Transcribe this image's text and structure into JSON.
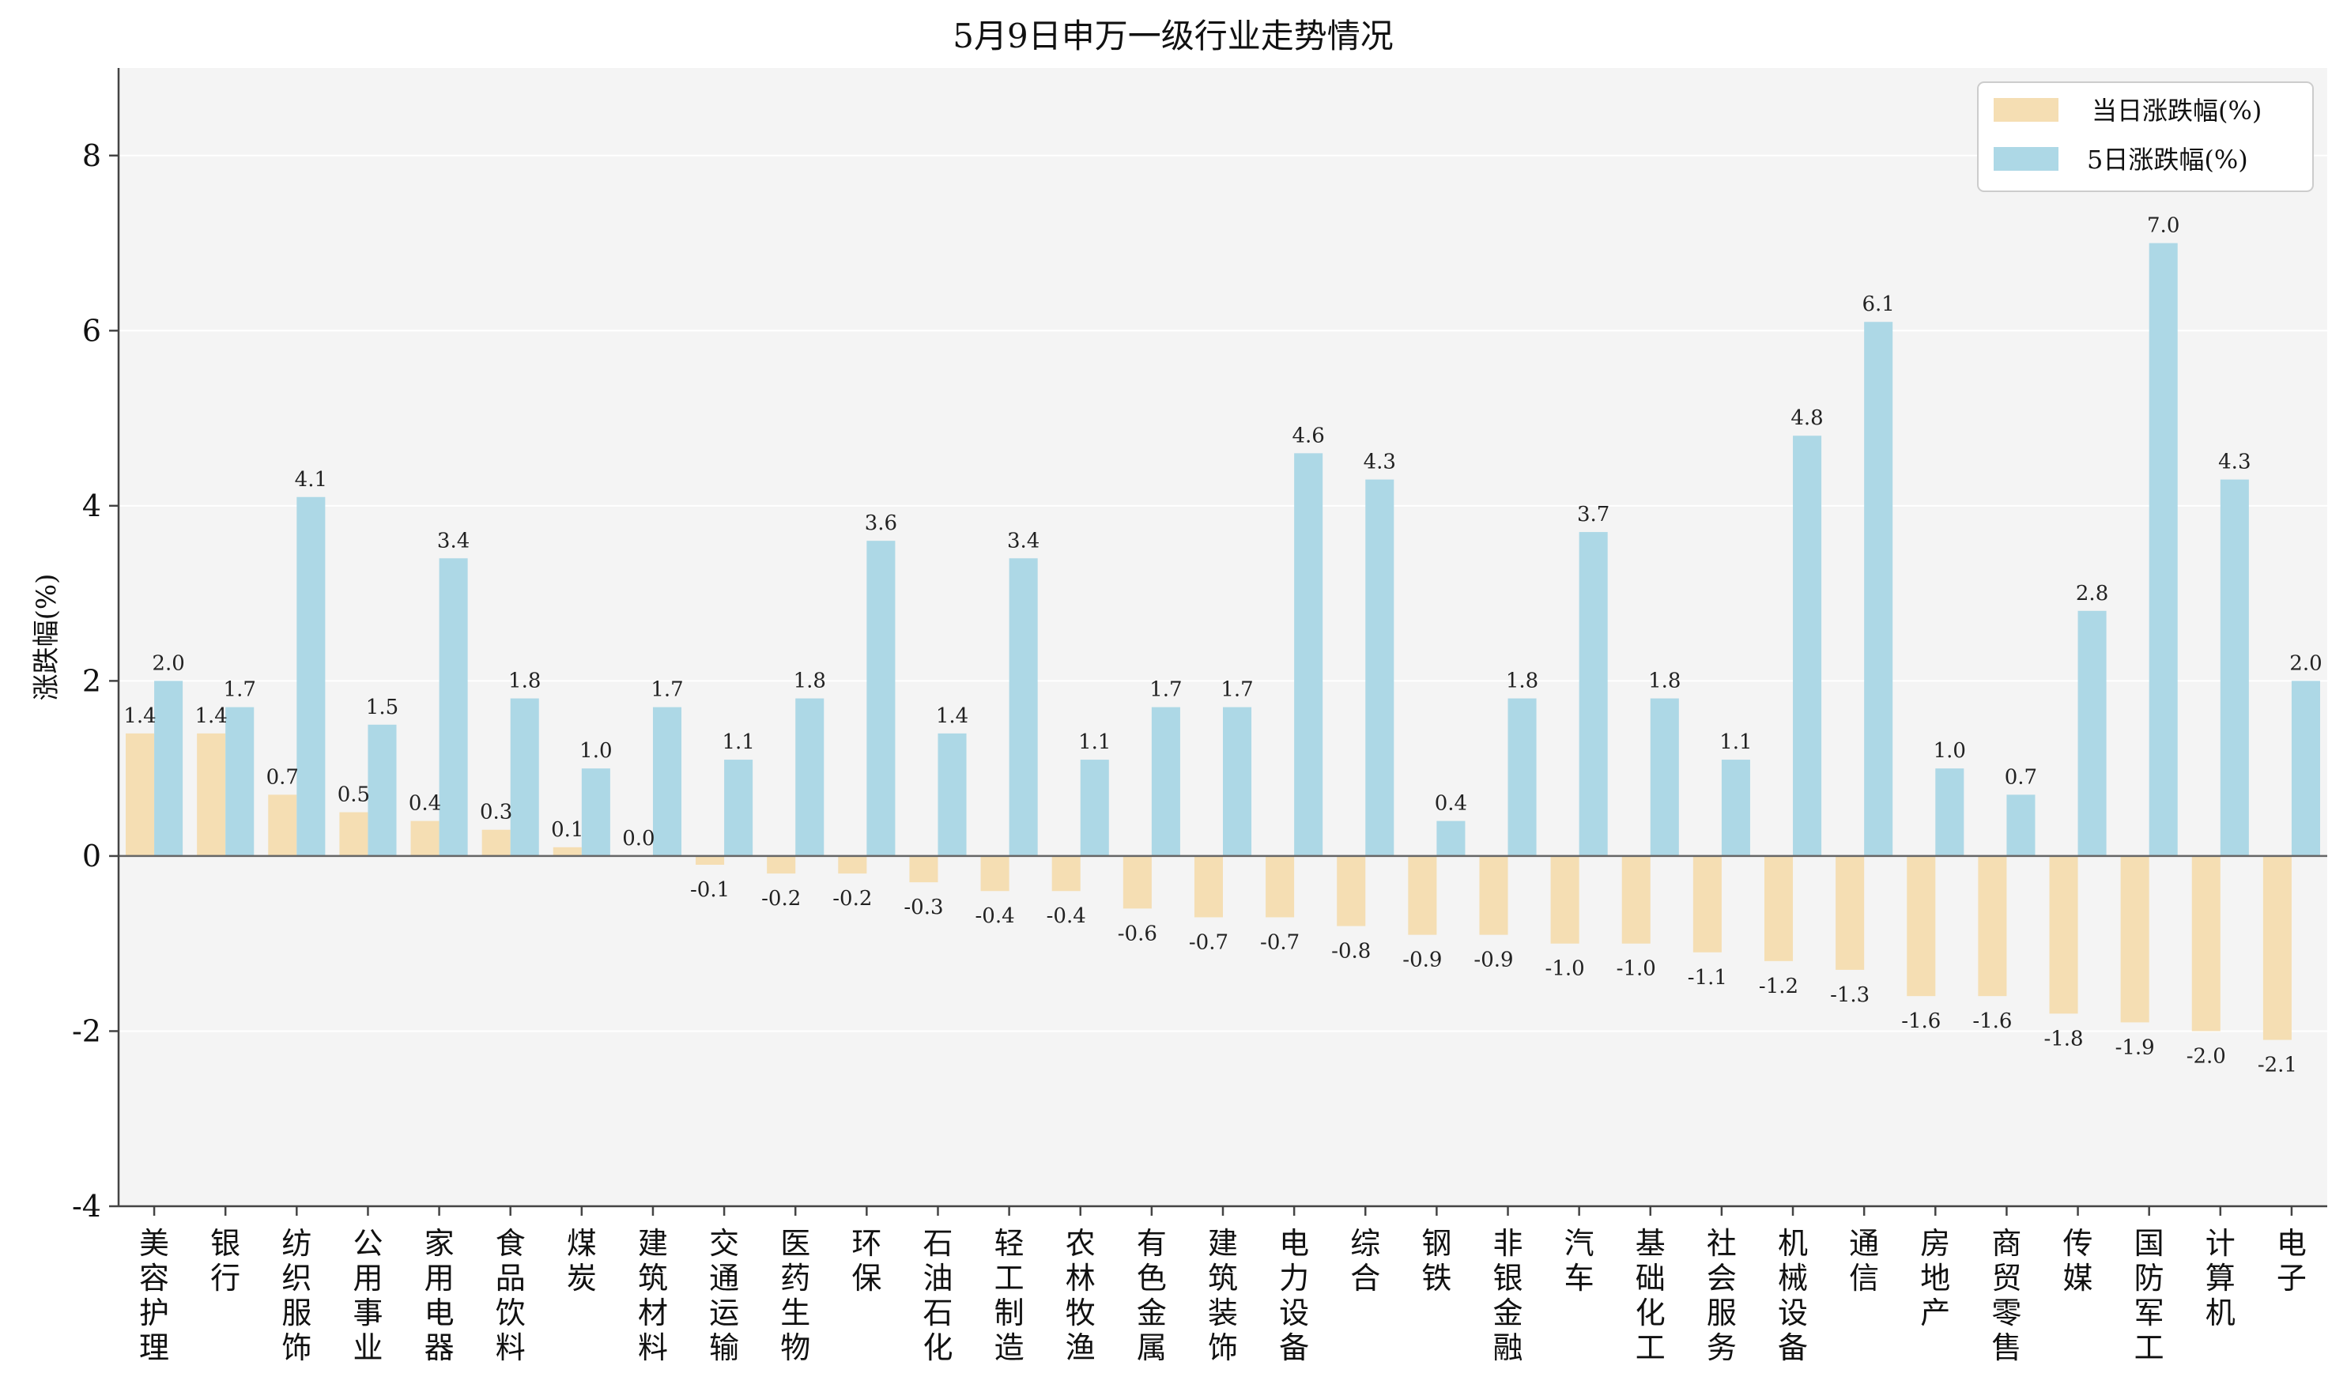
{
  "chart_data": {
    "type": "bar",
    "title": "5月9日申万一级行业走势情况",
    "xlabel": "",
    "ylabel": "涨跌幅(%)",
    "ylim": [
      -4,
      9
    ],
    "yticks": [
      -4,
      -2,
      0,
      2,
      4,
      6,
      8
    ],
    "grid": "horizontal",
    "legend_position": "top-right",
    "categories": [
      "美容护理",
      "银行",
      "纺织服饰",
      "公用事业",
      "家用电器",
      "食品饮料",
      "煤炭",
      "建筑材料",
      "交通运输",
      "医药生物",
      "环保",
      "石油石化",
      "轻工制造",
      "农林牧渔",
      "有色金属",
      "建筑装饰",
      "电力设备",
      "综合",
      "钢铁",
      "非银金融",
      "汽车",
      "基础化工",
      "社会服务",
      "机械设备",
      "通信",
      "房地产",
      "商贸零售",
      "传媒",
      "国防军工",
      "计算机",
      "电子"
    ],
    "series": [
      {
        "name": "当日涨跌幅(%)",
        "color": "#f5deb3",
        "values": [
          1.4,
          1.4,
          0.7,
          0.5,
          0.4,
          0.3,
          0.1,
          0.0,
          -0.1,
          -0.2,
          -0.2,
          -0.3,
          -0.4,
          -0.4,
          -0.6,
          -0.7,
          -0.7,
          -0.8,
          -0.9,
          -0.9,
          -1.0,
          -1.0,
          -1.1,
          -1.2,
          -1.3,
          -1.6,
          -1.6,
          -1.8,
          -1.9,
          -2.0,
          -2.1
        ]
      },
      {
        "name": "5日涨跌幅(%)",
        "color": "#add8e6",
        "values": [
          2.0,
          1.7,
          4.1,
          1.5,
          3.4,
          1.8,
          1.0,
          1.7,
          1.1,
          1.8,
          3.6,
          1.4,
          3.4,
          1.1,
          1.7,
          1.7,
          4.6,
          4.3,
          0.4,
          1.8,
          3.7,
          1.8,
          1.1,
          4.8,
          6.1,
          1.0,
          0.7,
          2.8,
          7.0,
          4.3,
          2.0
        ]
      }
    ]
  }
}
